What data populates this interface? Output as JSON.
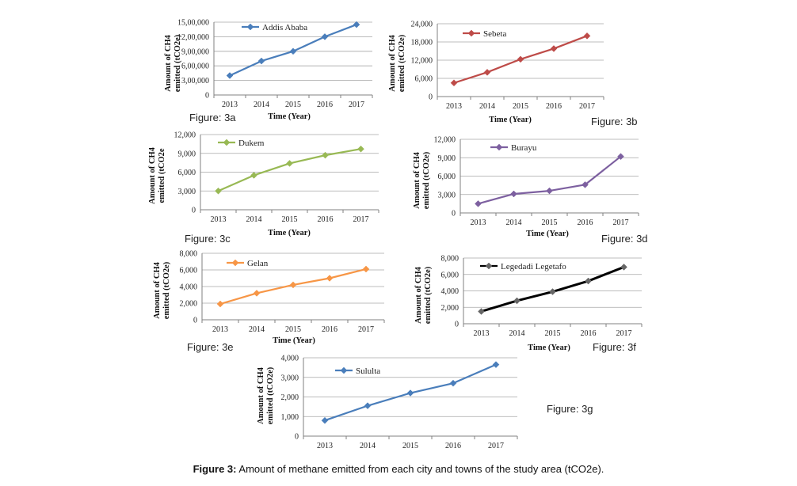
{
  "charts": [
    {
      "id": "3a",
      "type": "line",
      "series": [
        {
          "name": "Addis Ababa",
          "color": "#4a7ebb"
        }
      ],
      "categories": [
        "2013",
        "2014",
        "2015",
        "2016",
        "2017"
      ],
      "values": [
        400000,
        700000,
        900000,
        1200000,
        1450000
      ],
      "ylim": [
        0,
        1500000
      ],
      "yticks": [
        "0",
        "3,00,000",
        "6,00,000",
        "9,00,000",
        "12,00,000",
        "15,00,000"
      ],
      "xlabel": "Time (Year)",
      "ylabel": [
        "Amount of CH4",
        "emitted (tCO2e)"
      ],
      "fig_label": "Figure: 3a",
      "grid": true,
      "legend": "top-left"
    },
    {
      "id": "3b",
      "type": "line",
      "series": [
        {
          "name": "Sebeta",
          "color": "#be4b48"
        }
      ],
      "categories": [
        "2013",
        "2014",
        "2015",
        "2016",
        "2017"
      ],
      "values": [
        4500,
        8000,
        12300,
        15800,
        20000
      ],
      "ylim": [
        0,
        24000
      ],
      "yticks": [
        "0",
        "6,000",
        "12,000",
        "18,000",
        "24,000"
      ],
      "xlabel": "Time (Year)",
      "ylabel": [
        "Amount of CH4",
        "emitted (tCO2e)"
      ],
      "fig_label": "Figure: 3b",
      "grid": true,
      "legend": "top-left"
    },
    {
      "id": "3c",
      "type": "line",
      "series": [
        {
          "name": "Dukem",
          "color": "#98b954"
        }
      ],
      "categories": [
        "2013",
        "2014",
        "2015",
        "2016",
        "2017"
      ],
      "values": [
        3000,
        5500,
        7400,
        8700,
        9700
      ],
      "ylim": [
        0,
        12000
      ],
      "yticks": [
        "0",
        "3,000",
        "6,000",
        "9,000",
        "12,000"
      ],
      "xlabel": "Time (Year)",
      "ylabel": [
        "Amount  of CH4",
        "emitted (tCO2e"
      ],
      "fig_label": "Figure: 3c",
      "grid": true,
      "legend": "top-left"
    },
    {
      "id": "3d",
      "type": "line",
      "series": [
        {
          "name": "Burayu",
          "color": "#7d60a0"
        }
      ],
      "categories": [
        "2013",
        "2014",
        "2015",
        "2016",
        "2017"
      ],
      "values": [
        1500,
        3100,
        3600,
        4600,
        9200
      ],
      "ylim": [
        0,
        12000
      ],
      "yticks": [
        "0",
        "3,000",
        "6,000",
        "9,000",
        "12,000"
      ],
      "xlabel": "Time (Year)",
      "ylabel": [
        "Amount of CH4",
        "emitted (tCO2e)"
      ],
      "fig_label": "Figure: 3d",
      "grid": true,
      "legend": "top-left"
    },
    {
      "id": "3e",
      "type": "line",
      "series": [
        {
          "name": "Gelan",
          "color": "#f79646"
        }
      ],
      "categories": [
        "2013",
        "2014",
        "2015",
        "2016",
        "2017"
      ],
      "values": [
        1900,
        3200,
        4200,
        5000,
        6100
      ],
      "ylim": [
        0,
        8000
      ],
      "yticks": [
        "0",
        "2,000",
        "4,000",
        "6,000",
        "8,000"
      ],
      "xlabel": "Time (Year)",
      "ylabel": [
        "Amount of CH4",
        "emitted (tCO2e)"
      ],
      "fig_label": "Figure: 3e",
      "grid": true,
      "legend": "top-left"
    },
    {
      "id": "3f",
      "type": "line",
      "series": [
        {
          "name": "Legedadi Legetafo",
          "color": "#000000",
          "marker": "#666666"
        }
      ],
      "categories": [
        "2013",
        "2014",
        "2015",
        "2016",
        "2017"
      ],
      "values": [
        1500,
        2800,
        3900,
        5200,
        6900
      ],
      "ylim": [
        0,
        8000
      ],
      "yticks": [
        "0",
        "2,000",
        "4,000",
        "6,000",
        "8,000"
      ],
      "xlabel": "Time (Year)",
      "ylabel": [
        "Amount of CH4",
        "emitted (tCO2e)"
      ],
      "fig_label": "Figure: 3f",
      "grid": true,
      "legend": "top-left"
    },
    {
      "id": "3g",
      "type": "line",
      "series": [
        {
          "name": "Sululta",
          "color": "#4a7ebb"
        }
      ],
      "categories": [
        "2013",
        "2014",
        "2015",
        "2016",
        "2017"
      ],
      "values": [
        800,
        1550,
        2200,
        2700,
        3650
      ],
      "ylim": [
        0,
        4000
      ],
      "yticks": [
        "0",
        "1,000",
        "2,000",
        "3,000",
        "4,000"
      ],
      "xlabel": "",
      "ylabel": [
        "Amount of CH4",
        "emitted (tCO2e)"
      ],
      "fig_label": "Figure: 3g",
      "grid": true,
      "legend": "top-left"
    }
  ],
  "caption": {
    "bold": "Figure 3:",
    "text": " Amount of methane emitted from each city and towns of the study area (tCO2e)."
  }
}
